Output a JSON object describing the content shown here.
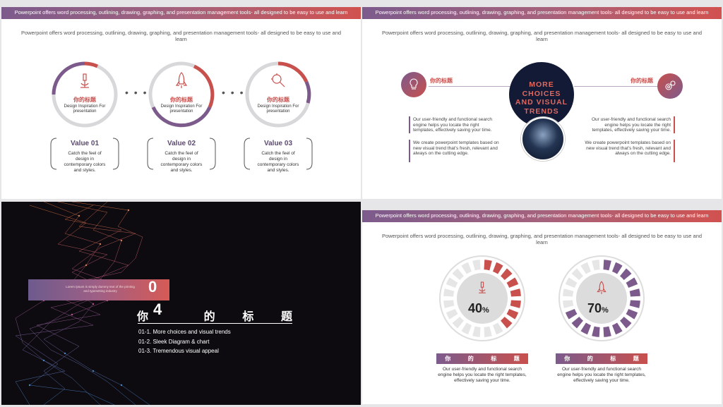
{
  "colors": {
    "accent_red": "#c8504d",
    "accent_purple": "#7c5b8c",
    "dark_navy": "#121a35"
  },
  "banner": "Powerpoint offers word processing, outlining, drawing, graphing, and presentation management tools- all designed to be easy to use and learn",
  "subtitle": "Powerpoint offers word processing, outlining, drawing, graphing, and presentation management tools- all designed to be easy to use and learn",
  "slide1": {
    "circles": [
      {
        "icon": "microscope-icon",
        "title": "你的标题",
        "caption": "Design Inspiration For presentation",
        "value_title": "Value 01",
        "value_text": "Catch the feel of design in contemporary colors and styles."
      },
      {
        "icon": "rocket-icon",
        "title": "你的标题",
        "caption": "Design Inspiration For presentation",
        "value_title": "Value 02",
        "value_text": "Catch the feel of design in contemporary colors and styles."
      },
      {
        "icon": "magnifier-icon",
        "title": "你的标题",
        "caption": "Design Inspiration For presentation",
        "value_title": "Value 03",
        "value_text": "Catch the feel of design in contemporary colors and styles."
      }
    ],
    "dots": "• • •"
  },
  "slide2": {
    "left_title": "你的标题",
    "right_title": "你的标题",
    "center_lines": [
      "MORE",
      "CHOICES",
      "AND VISUAL",
      "TRENDS"
    ],
    "left_text_1": "Our user-friendly and functional search engine helps you locate the right templates, effectively saving your time.",
    "left_text_2": "We create powerpoint templates based on new visual trend that’s fresh, relevant and always on the cutting edge.",
    "right_text_1": "Our user-friendly and functional search engine helps you locate the right templates, effectively saving your time.",
    "right_text_2": "We create powerpoint templates based on new visual trend that’s fresh, relevant and always on the cutting edge."
  },
  "slide3": {
    "number": "0",
    "number2": "4",
    "heading": [
      "你",
      "的",
      "标",
      "题"
    ],
    "small_text": "Lorem Ipsum is simply dummy text of the printing and typesetting industry",
    "agenda": [
      "01-1. More choices and visual trends",
      "01-2. Sleek Diagram & chart",
      "01-3. Tremendous visual appeal"
    ]
  },
  "slide4": {
    "gauges": [
      {
        "percent": 40,
        "label": "40",
        "unit": "%",
        "icon": "microscope-icon",
        "color": "#c8504d",
        "bar_label": [
          "你",
          "的",
          "标",
          "题"
        ],
        "text": "Our user-friendly and functional search engine helps you locate the right templates, effectively saving your time."
      },
      {
        "percent": 70,
        "label": "70",
        "unit": "%",
        "icon": "rocket-icon",
        "color": "#7c5b8c",
        "bar_label": [
          "你",
          "的",
          "标",
          "题"
        ],
        "text": "Our user-friendly and functional search engine helps you locate the right templates, effectively saving your time."
      }
    ]
  }
}
